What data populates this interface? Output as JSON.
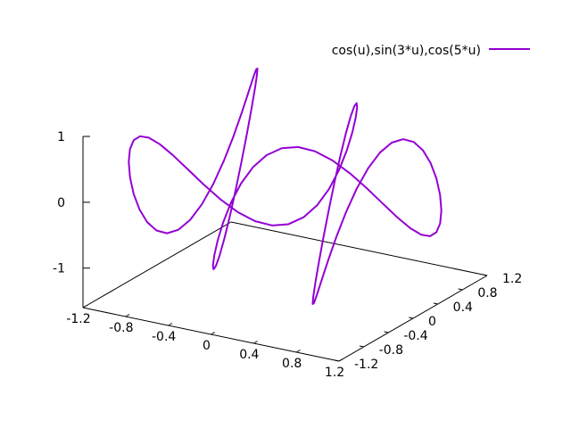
{
  "chart_data": {
    "type": "line",
    "title": "",
    "legend": {
      "position": "top-right",
      "entries": [
        {
          "label": "cos(u),sin(3*u),cos(5*u)",
          "color": "#9400d3"
        }
      ]
    },
    "series": [
      {
        "name": "cos(u),sin(3*u),cos(5*u)",
        "parametric": true,
        "x": "cos(u)",
        "y": "sin(3*u)",
        "z": "cos(5*u)",
        "u_range": [
          -3.14159,
          3.14159
        ],
        "samples": 100,
        "color": "#9400d3"
      }
    ],
    "axes": {
      "x": {
        "range": [
          -1.2,
          1.2
        ],
        "ticks": [
          -1.2,
          -0.8,
          -0.4,
          0,
          0.4,
          0.8,
          1.2
        ],
        "tick_labels": [
          "-1.2",
          "-0.8",
          "-0.4",
          "0",
          "0.4",
          "0.8",
          "1.2"
        ]
      },
      "y": {
        "range": [
          -1.2,
          1.2
        ],
        "ticks": [
          -1.2,
          -0.8,
          -0.4,
          0,
          0.4,
          0.8,
          1.2
        ],
        "tick_labels": [
          "-1.2",
          "-0.8",
          "-0.4",
          "0",
          "0.4",
          "0.8",
          "1.2"
        ]
      },
      "z": {
        "range": [
          -1.6,
          1
        ],
        "ticks": [
          -1,
          0,
          1
        ],
        "tick_labels": [
          "-1",
          "0",
          "1"
        ]
      }
    },
    "view": {
      "rot_x": 60,
      "rot_z": 30
    },
    "grid": false
  }
}
